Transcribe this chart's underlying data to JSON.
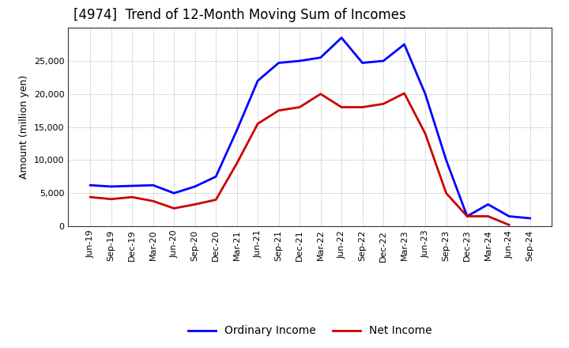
{
  "title": "[4974]  Trend of 12-Month Moving Sum of Incomes",
  "ylabel": "Amount (million yen)",
  "background_color": "#ffffff",
  "grid_color": "#999999",
  "x_labels": [
    "Jun-19",
    "Sep-19",
    "Dec-19",
    "Mar-20",
    "Jun-20",
    "Sep-20",
    "Dec-20",
    "Mar-21",
    "Jun-21",
    "Sep-21",
    "Dec-21",
    "Mar-22",
    "Jun-22",
    "Sep-22",
    "Dec-22",
    "Mar-23",
    "Jun-23",
    "Sep-23",
    "Dec-23",
    "Mar-24",
    "Jun-24",
    "Sep-24"
  ],
  "ordinary_income": [
    6200,
    6000,
    6100,
    6200,
    5000,
    6000,
    7500,
    14500,
    22000,
    24700,
    25000,
    25500,
    28500,
    24700,
    25000,
    27500,
    20000,
    10000,
    1500,
    3300,
    1500,
    1200
  ],
  "net_income": [
    4400,
    4100,
    4400,
    3800,
    2700,
    3300,
    4000,
    9500,
    15500,
    17500,
    18000,
    20000,
    18000,
    18000,
    18500,
    20100,
    14000,
    5000,
    1500,
    1500,
    200,
    null
  ],
  "ordinary_color": "#0000ff",
  "net_color": "#cc0000",
  "line_width": 2.0,
  "ylim": [
    0,
    30000
  ],
  "yticks": [
    0,
    5000,
    10000,
    15000,
    20000,
    25000
  ],
  "title_fontsize": 12,
  "axis_label_fontsize": 9,
  "tick_fontsize": 8,
  "legend_fontsize": 10
}
